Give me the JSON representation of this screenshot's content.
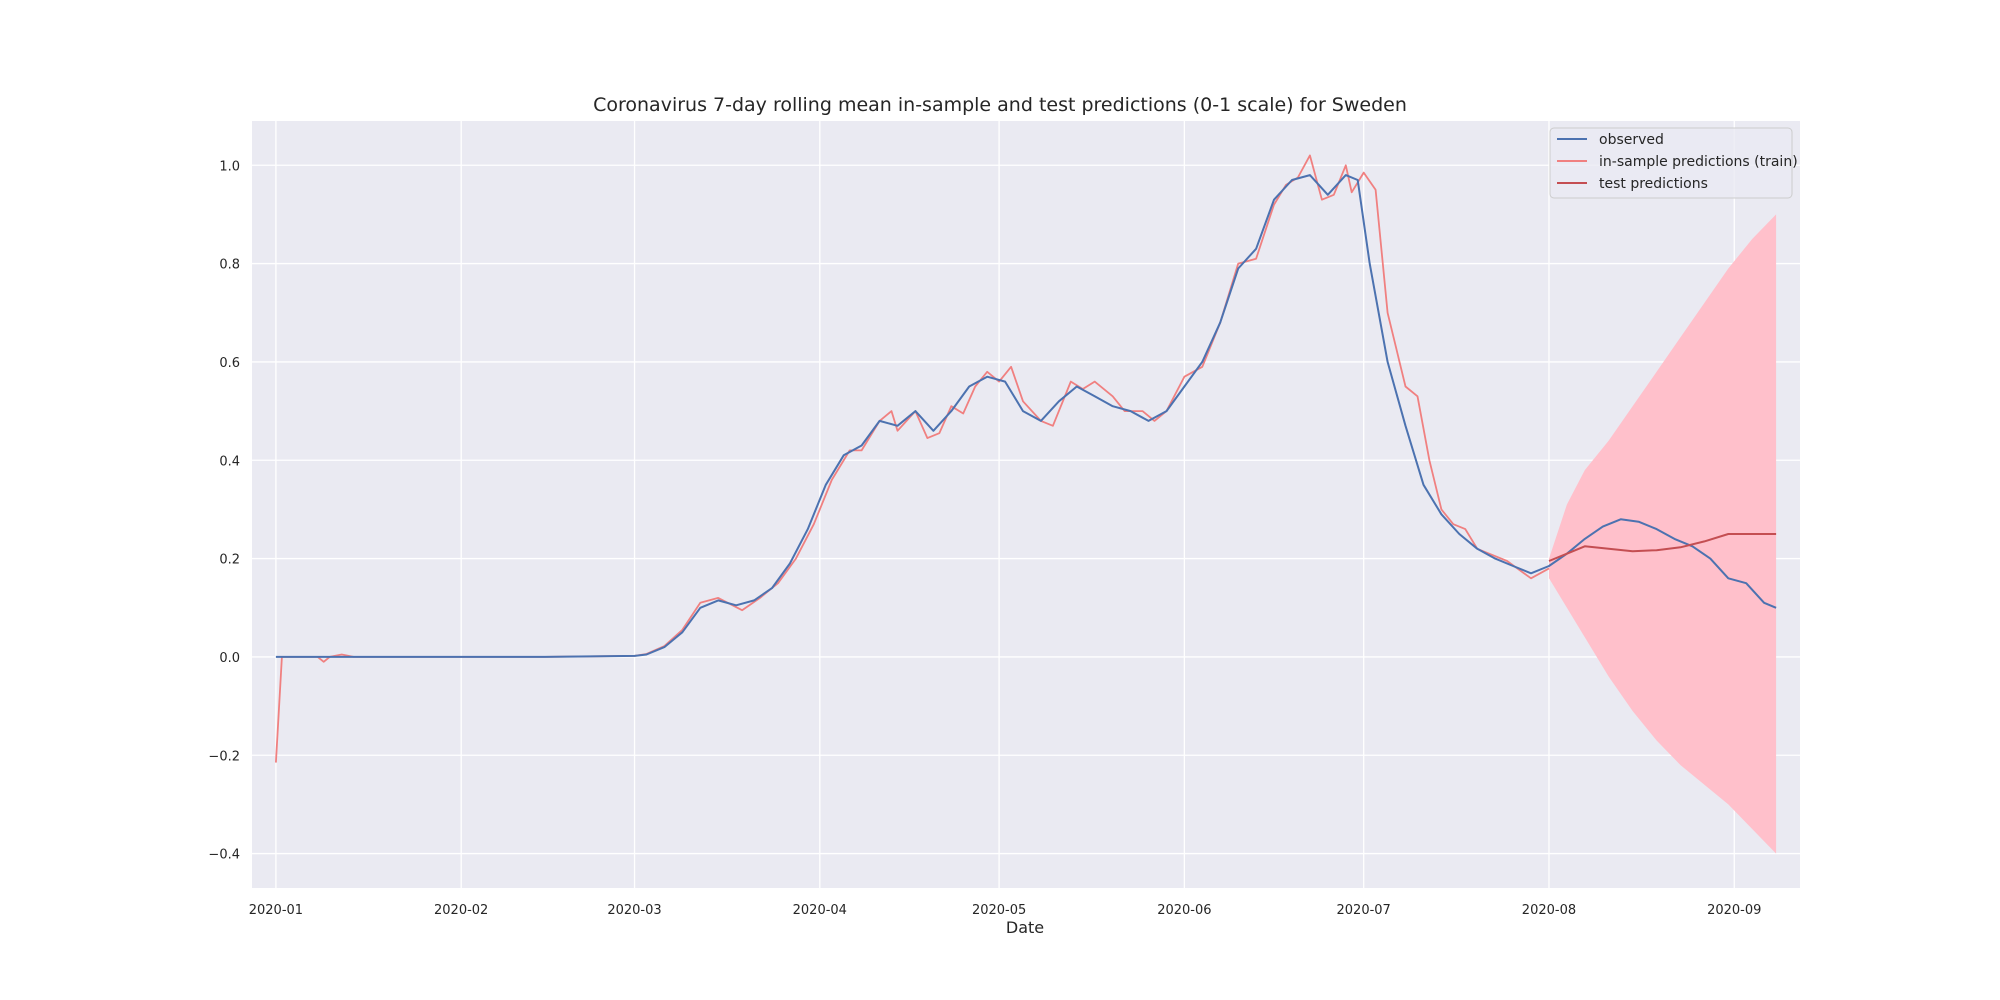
{
  "chart_data": {
    "type": "line",
    "title": "Coronavirus 7-day rolling mean in-sample and test predictions (0-1 scale) for Sweden",
    "xlabel": "Date",
    "ylabel": "",
    "xlim": [
      "2019-12-28",
      "2020-09-12"
    ],
    "ylim": [
      -0.47,
      1.09
    ],
    "x_ticks": [
      "2020-01",
      "2020-02",
      "2020-03",
      "2020-04",
      "2020-05",
      "2020-06",
      "2020-07",
      "2020-08",
      "2020-09"
    ],
    "x_tick_dates": [
      "2020-01-01",
      "2020-02-01",
      "2020-03-01",
      "2020-04-01",
      "2020-05-01",
      "2020-06-01",
      "2020-07-01",
      "2020-08-01",
      "2020-09-01"
    ],
    "y_ticks": [
      -0.4,
      -0.2,
      0.0,
      0.2,
      0.4,
      0.6,
      0.8,
      1.0
    ],
    "y_tick_labels": [
      "−0.4",
      "−0.2",
      "0.0",
      "0.2",
      "0.4",
      "0.6",
      "0.8",
      "1.0"
    ],
    "grid": true,
    "background": "#EAEAF2",
    "legend_position": "top-right",
    "legend": [
      "observed",
      "in-sample predictions (train)",
      "test predictions"
    ],
    "series": [
      {
        "name": "observed",
        "color": "#4C72B0",
        "points": [
          [
            "2020-01-01",
            0.0
          ],
          [
            "2020-01-15",
            0.0
          ],
          [
            "2020-02-01",
            0.0
          ],
          [
            "2020-02-15",
            0.0
          ],
          [
            "2020-03-01",
            0.002
          ],
          [
            "2020-03-03",
            0.005
          ],
          [
            "2020-03-06",
            0.02
          ],
          [
            "2020-03-09",
            0.05
          ],
          [
            "2020-03-12",
            0.1
          ],
          [
            "2020-03-15",
            0.115
          ],
          [
            "2020-03-18",
            0.105
          ],
          [
            "2020-03-21",
            0.115
          ],
          [
            "2020-03-24",
            0.14
          ],
          [
            "2020-03-27",
            0.19
          ],
          [
            "2020-03-30",
            0.26
          ],
          [
            "2020-04-02",
            0.35
          ],
          [
            "2020-04-05",
            0.41
          ],
          [
            "2020-04-08",
            0.43
          ],
          [
            "2020-04-11",
            0.48
          ],
          [
            "2020-04-14",
            0.47
          ],
          [
            "2020-04-17",
            0.5
          ],
          [
            "2020-04-20",
            0.46
          ],
          [
            "2020-04-23",
            0.5
          ],
          [
            "2020-04-26",
            0.55
          ],
          [
            "2020-04-29",
            0.57
          ],
          [
            "2020-05-02",
            0.56
          ],
          [
            "2020-05-05",
            0.5
          ],
          [
            "2020-05-08",
            0.48
          ],
          [
            "2020-05-11",
            0.52
          ],
          [
            "2020-05-14",
            0.55
          ],
          [
            "2020-05-17",
            0.53
          ],
          [
            "2020-05-20",
            0.51
          ],
          [
            "2020-05-23",
            0.5
          ],
          [
            "2020-05-26",
            0.48
          ],
          [
            "2020-05-29",
            0.5
          ],
          [
            "2020-06-01",
            0.55
          ],
          [
            "2020-06-04",
            0.6
          ],
          [
            "2020-06-07",
            0.68
          ],
          [
            "2020-06-10",
            0.79
          ],
          [
            "2020-06-13",
            0.83
          ],
          [
            "2020-06-16",
            0.93
          ],
          [
            "2020-06-19",
            0.97
          ],
          [
            "2020-06-22",
            0.98
          ],
          [
            "2020-06-25",
            0.94
          ],
          [
            "2020-06-28",
            0.98
          ],
          [
            "2020-06-30",
            0.97
          ],
          [
            "2020-07-02",
            0.8
          ],
          [
            "2020-07-05",
            0.6
          ],
          [
            "2020-07-08",
            0.47
          ],
          [
            "2020-07-11",
            0.35
          ],
          [
            "2020-07-14",
            0.29
          ],
          [
            "2020-07-17",
            0.25
          ],
          [
            "2020-07-20",
            0.22
          ],
          [
            "2020-07-23",
            0.2
          ],
          [
            "2020-07-26",
            0.185
          ],
          [
            "2020-07-29",
            0.17
          ],
          [
            "2020-08-01",
            0.185
          ],
          [
            "2020-08-04",
            0.21
          ],
          [
            "2020-08-07",
            0.24
          ],
          [
            "2020-08-10",
            0.265
          ],
          [
            "2020-08-13",
            0.28
          ],
          [
            "2020-08-16",
            0.275
          ],
          [
            "2020-08-19",
            0.26
          ],
          [
            "2020-08-22",
            0.24
          ],
          [
            "2020-08-25",
            0.225
          ],
          [
            "2020-08-28",
            0.2
          ],
          [
            "2020-08-31",
            0.16
          ],
          [
            "2020-09-03",
            0.15
          ],
          [
            "2020-09-06",
            0.11
          ],
          [
            "2020-09-08",
            0.1
          ]
        ]
      },
      {
        "name": "in-sample predictions (train)",
        "color": "#F08080",
        "points": [
          [
            "2020-01-01",
            -0.215
          ],
          [
            "2020-01-02",
            0.0
          ],
          [
            "2020-01-08",
            0.0
          ],
          [
            "2020-01-09",
            -0.01
          ],
          [
            "2020-01-10",
            0.0
          ],
          [
            "2020-01-12",
            0.005
          ],
          [
            "2020-01-14",
            0.0
          ],
          [
            "2020-02-15",
            0.0
          ],
          [
            "2020-03-01",
            0.002
          ],
          [
            "2020-03-03",
            0.006
          ],
          [
            "2020-03-06",
            0.022
          ],
          [
            "2020-03-09",
            0.055
          ],
          [
            "2020-03-12",
            0.11
          ],
          [
            "2020-03-15",
            0.12
          ],
          [
            "2020-03-19",
            0.095
          ],
          [
            "2020-03-22",
            0.12
          ],
          [
            "2020-03-25",
            0.15
          ],
          [
            "2020-03-28",
            0.2
          ],
          [
            "2020-03-31",
            0.27
          ],
          [
            "2020-04-03",
            0.36
          ],
          [
            "2020-04-06",
            0.42
          ],
          [
            "2020-04-08",
            0.42
          ],
          [
            "2020-04-11",
            0.48
          ],
          [
            "2020-04-13",
            0.5
          ],
          [
            "2020-04-14",
            0.46
          ],
          [
            "2020-04-17",
            0.5
          ],
          [
            "2020-04-19",
            0.445
          ],
          [
            "2020-04-21",
            0.455
          ],
          [
            "2020-04-23",
            0.51
          ],
          [
            "2020-04-25",
            0.495
          ],
          [
            "2020-04-27",
            0.55
          ],
          [
            "2020-04-29",
            0.58
          ],
          [
            "2020-05-01",
            0.56
          ],
          [
            "2020-05-03",
            0.59
          ],
          [
            "2020-05-05",
            0.52
          ],
          [
            "2020-05-08",
            0.48
          ],
          [
            "2020-05-10",
            0.47
          ],
          [
            "2020-05-13",
            0.56
          ],
          [
            "2020-05-15",
            0.545
          ],
          [
            "2020-05-17",
            0.56
          ],
          [
            "2020-05-20",
            0.53
          ],
          [
            "2020-05-22",
            0.5
          ],
          [
            "2020-05-25",
            0.5
          ],
          [
            "2020-05-27",
            0.48
          ],
          [
            "2020-05-29",
            0.5
          ],
          [
            "2020-06-01",
            0.57
          ],
          [
            "2020-06-04",
            0.59
          ],
          [
            "2020-06-07",
            0.68
          ],
          [
            "2020-06-10",
            0.8
          ],
          [
            "2020-06-13",
            0.81
          ],
          [
            "2020-06-16",
            0.92
          ],
          [
            "2020-06-18",
            0.96
          ],
          [
            "2020-06-20",
            0.975
          ],
          [
            "2020-06-22",
            1.02
          ],
          [
            "2020-06-24",
            0.93
          ],
          [
            "2020-06-26",
            0.94
          ],
          [
            "2020-06-28",
            1.0
          ],
          [
            "2020-06-29",
            0.945
          ],
          [
            "2020-07-01",
            0.985
          ],
          [
            "2020-07-03",
            0.95
          ],
          [
            "2020-07-05",
            0.7
          ],
          [
            "2020-07-08",
            0.55
          ],
          [
            "2020-07-10",
            0.53
          ],
          [
            "2020-07-12",
            0.4
          ],
          [
            "2020-07-14",
            0.3
          ],
          [
            "2020-07-16",
            0.27
          ],
          [
            "2020-07-18",
            0.26
          ],
          [
            "2020-07-20",
            0.22
          ],
          [
            "2020-07-22",
            0.21
          ],
          [
            "2020-07-25",
            0.195
          ],
          [
            "2020-07-29",
            0.16
          ],
          [
            "2020-08-01",
            0.18
          ]
        ]
      },
      {
        "name": "test predictions",
        "color": "#C44E52",
        "points": [
          [
            "2020-08-01",
            0.195
          ],
          [
            "2020-08-04",
            0.21
          ],
          [
            "2020-08-07",
            0.225
          ],
          [
            "2020-08-11",
            0.22
          ],
          [
            "2020-08-15",
            0.215
          ],
          [
            "2020-08-19",
            0.217
          ],
          [
            "2020-08-23",
            0.223
          ],
          [
            "2020-08-27",
            0.235
          ],
          [
            "2020-08-31",
            0.25
          ],
          [
            "2020-09-08",
            0.25
          ]
        ]
      }
    ],
    "confidence_band": {
      "color": "#FFC0CB",
      "points": [
        [
          "2020-08-01",
          0.16,
          0.2
        ],
        [
          "2020-08-04",
          0.1,
          0.31
        ],
        [
          "2020-08-07",
          0.04,
          0.38
        ],
        [
          "2020-08-11",
          -0.04,
          0.44
        ],
        [
          "2020-08-15",
          -0.11,
          0.51
        ],
        [
          "2020-08-19",
          -0.17,
          0.58
        ],
        [
          "2020-08-23",
          -0.22,
          0.65
        ],
        [
          "2020-08-27",
          -0.26,
          0.72
        ],
        [
          "2020-08-31",
          -0.3,
          0.79
        ],
        [
          "2020-09-04",
          -0.35,
          0.85
        ],
        [
          "2020-09-08",
          -0.4,
          0.9
        ]
      ]
    }
  }
}
